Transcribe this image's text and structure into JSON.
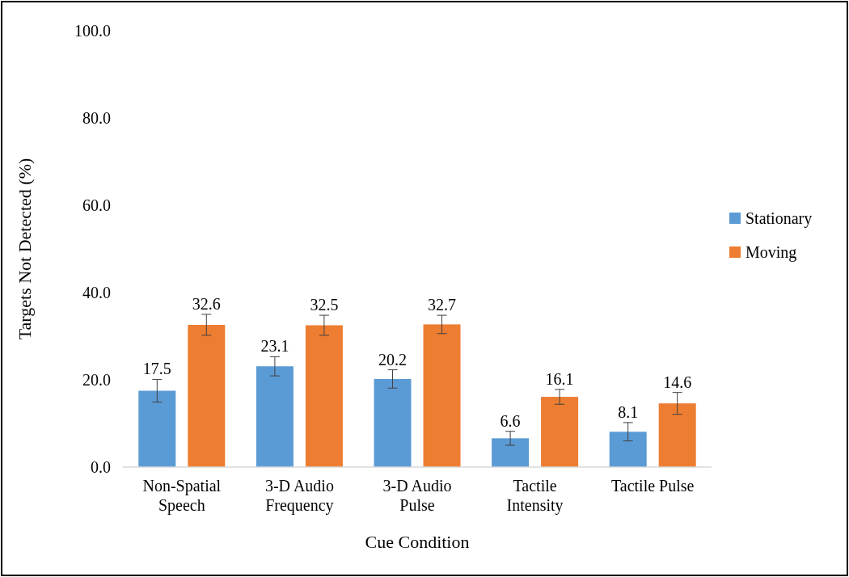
{
  "chart_data": {
    "type": "bar",
    "xlabel": "Cue Condition",
    "ylabel": "Targets Not Detected (%)",
    "categories": [
      "Non-Spatial Speech",
      "3-D Audio Frequency",
      "3-D Audio Pulse",
      "Tactile Intensity",
      "Tactile Pulse"
    ],
    "series": [
      {
        "name": "Stationary",
        "color": "#5b9bd5",
        "values": [
          17.5,
          23.1,
          20.2,
          6.6,
          8.1
        ],
        "errors": [
          2.6,
          2.2,
          2.1,
          1.6,
          2.1
        ]
      },
      {
        "name": "Moving",
        "color": "#ed7d31",
        "values": [
          32.6,
          32.5,
          32.7,
          16.1,
          14.6
        ],
        "errors": [
          2.4,
          2.3,
          2.1,
          1.7,
          2.5
        ]
      }
    ],
    "ylim": [
      0,
      100
    ],
    "yticks": [
      {
        "value": 0,
        "label": "0.0"
      },
      {
        "value": 20,
        "label": "20.0"
      },
      {
        "value": 40,
        "label": "40.0"
      },
      {
        "value": 60,
        "label": "60.0"
      },
      {
        "value": 80,
        "label": "80.0"
      },
      {
        "value": 100,
        "label": "100.0"
      }
    ],
    "data_labels": true,
    "legend": "right",
    "grid": false
  }
}
